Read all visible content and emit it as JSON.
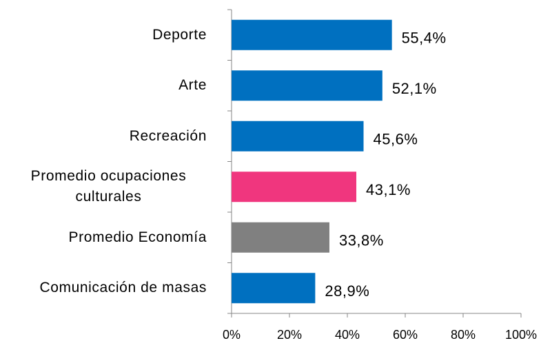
{
  "chart_data": {
    "type": "bar",
    "orientation": "horizontal",
    "categories": [
      "Deporte",
      "Arte",
      "Recreación",
      "Promedio ocupaciones culturales",
      "Promedio Economía",
      "Comunicación de masas"
    ],
    "values": [
      55.4,
      52.1,
      45.6,
      43.1,
      33.8,
      28.9
    ],
    "value_labels": [
      "55,4%",
      "52,1%",
      "45,6%",
      "43,1%",
      "33,8%",
      "28,9%"
    ],
    "colors": [
      "#0070c0",
      "#0070c0",
      "#0070c0",
      "#f0367e",
      "#808080",
      "#0070c0"
    ],
    "xlim": [
      0,
      100
    ],
    "xticks": [
      {
        "value": 0,
        "label": "0%"
      },
      {
        "value": 20,
        "label": "20%"
      },
      {
        "value": 40,
        "label": "40%"
      },
      {
        "value": 60,
        "label": "60%"
      },
      {
        "value": 80,
        "label": "80%"
      },
      {
        "value": 100,
        "label": "100%"
      }
    ],
    "grid": false
  }
}
